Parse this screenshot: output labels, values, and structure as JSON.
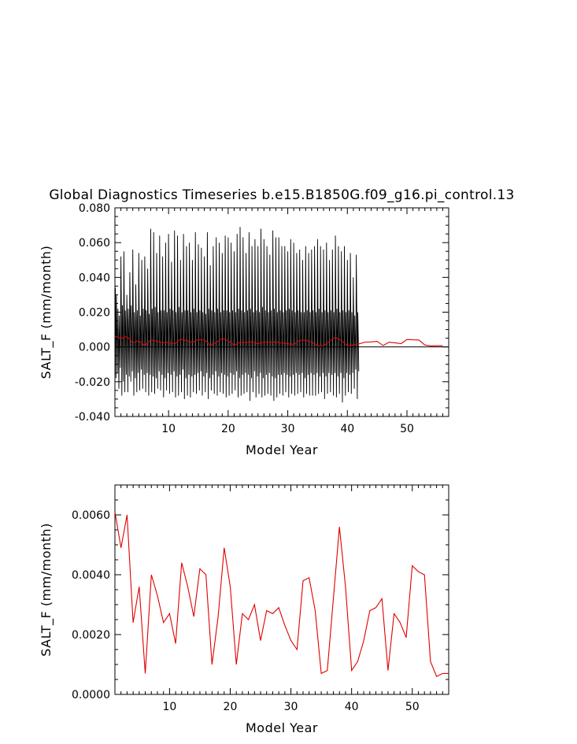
{
  "title": "Global Diagnostics Timeseries b.e15.B1850G.f09_g16.pi_control.13",
  "chart_data": [
    {
      "type": "line",
      "xlabel": "Model Year",
      "ylabel": "SALT_F (mm/month)",
      "xlim": [
        1,
        57
      ],
      "ylim": [
        -0.04,
        0.08
      ],
      "xticks": [
        10,
        20,
        30,
        40,
        50
      ],
      "yticks": [
        -0.04,
        -0.02,
        0.0,
        0.02,
        0.04,
        0.06,
        0.08
      ],
      "ytick_labels": [
        "-0.040",
        "-0.020",
        "0.000",
        "0.020",
        "0.040",
        "0.060",
        "0.080"
      ],
      "xtick_labels": [
        "10",
        "20",
        "30",
        "40",
        "50"
      ],
      "zero_line": true,
      "series": [
        {
          "kind": "monthly",
          "color": "#000000",
          "description_of_shape": "monthly values oscillating with a strong seasonal cycle",
          "x_start": 1.0,
          "x_step": 0.08333,
          "values": [
            0.012,
            0.034,
            -0.018,
            0.03,
            0.009,
            -0.015,
            0.022,
            0.005,
            -0.024,
            0.018,
            0.004,
            -0.012,
            0.052,
            0.021,
            -0.028,
            0.024,
            0.008,
            -0.02,
            0.055,
            0.02,
            -0.026,
            0.021,
            0.006,
            -0.016,
            0.03,
            0.014,
            -0.026,
            0.022,
            0.003,
            -0.017,
            0.043,
            0.017,
            -0.02,
            0.024,
            0.003,
            -0.014,
            0.056,
            0.019,
            -0.028,
            0.02,
            0.007,
            -0.018,
            0.036,
            0.016,
            -0.026,
            0.021,
            0.003,
            -0.015,
            0.054,
            0.02,
            -0.025,
            0.018,
            0.006,
            -0.013,
            0.05,
            0.016,
            -0.024,
            0.022,
            0.004,
            -0.016,
            0.052,
            0.02,
            -0.026,
            0.021,
            0.006,
            -0.015,
            0.045,
            0.017,
            -0.028,
            0.019,
            0.004,
            -0.016,
            0.068,
            0.022,
            -0.026,
            0.022,
            0.007,
            -0.017,
            0.066,
            0.021,
            -0.027,
            0.023,
            0.005,
            -0.018,
            0.054,
            0.019,
            -0.024,
            0.02,
            0.003,
            -0.014,
            0.064,
            0.018,
            -0.025,
            0.021,
            0.006,
            -0.016,
            0.052,
            0.015,
            -0.029,
            0.021,
            0.005,
            -0.018,
            0.06,
            0.018,
            -0.025,
            0.02,
            0.004,
            -0.015,
            0.065,
            0.021,
            -0.027,
            0.022,
            0.007,
            -0.016,
            0.049,
            0.017,
            -0.026,
            0.021,
            0.003,
            -0.014,
            0.067,
            0.02,
            -0.029,
            0.02,
            0.006,
            -0.017,
            0.064,
            0.019,
            -0.028,
            0.023,
            0.005,
            -0.016,
            0.05,
            0.016,
            -0.026,
            0.02,
            0.004,
            -0.013,
            0.065,
            0.022,
            -0.03,
            0.021,
            0.006,
            -0.018,
            0.058,
            0.019,
            -0.028,
            0.021,
            0.004,
            -0.016,
            0.06,
            0.016,
            -0.029,
            0.02,
            0.005,
            -0.017,
            0.05,
            0.018,
            -0.026,
            0.022,
            0.006,
            -0.016,
            0.066,
            0.021,
            -0.027,
            0.02,
            0.004,
            -0.015,
            0.059,
            0.018,
            -0.025,
            0.021,
            0.005,
            -0.014,
            0.057,
            0.017,
            -0.028,
            0.02,
            0.007,
            -0.017,
            0.052,
            0.016,
            -0.026,
            0.019,
            0.003,
            -0.015,
            0.066,
            0.022,
            -0.03,
            0.022,
            0.006,
            -0.018,
            0.047,
            0.016,
            -0.025,
            0.021,
            0.004,
            -0.016,
            0.058,
            0.019,
            -0.027,
            0.02,
            0.005,
            -0.014,
            0.063,
            0.018,
            -0.028,
            0.022,
            0.006,
            -0.017,
            0.06,
            0.017,
            -0.026,
            0.02,
            0.004,
            -0.015,
            0.054,
            0.02,
            -0.027,
            0.021,
            0.005,
            -0.016,
            0.064,
            0.021,
            -0.029,
            0.021,
            0.006,
            -0.017,
            0.063,
            0.019,
            -0.028,
            0.02,
            0.004,
            -0.015,
            0.06,
            0.018,
            -0.027,
            0.021,
            0.005,
            -0.016,
            0.055,
            0.016,
            -0.025,
            0.02,
            0.003,
            -0.014,
            0.065,
            0.02,
            -0.029,
            0.022,
            0.006,
            -0.018,
            0.069,
            0.022,
            -0.028,
            0.021,
            0.005,
            -0.016,
            0.063,
            0.019,
            -0.027,
            0.02,
            0.004,
            -0.015,
            0.054,
            0.017,
            -0.026,
            0.021,
            0.005,
            -0.016,
            0.066,
            0.02,
            -0.031,
            0.022,
            0.006,
            -0.018,
            0.058,
            0.018,
            -0.026,
            0.02,
            0.003,
            -0.014,
            0.062,
            0.02,
            -0.029,
            0.021,
            0.005,
            -0.017,
            0.058,
            0.019,
            -0.027,
            0.02,
            0.004,
            -0.015,
            0.068,
            0.022,
            -0.029,
            0.023,
            0.007,
            -0.018,
            0.062,
            0.019,
            -0.028,
            0.021,
            0.005,
            -0.016,
            0.058,
            0.018,
            -0.027,
            0.02,
            0.004,
            -0.015,
            0.053,
            0.016,
            -0.028,
            0.021,
            0.005,
            -0.017,
            0.067,
            0.021,
            -0.031,
            0.022,
            0.006,
            -0.018,
            0.063,
            0.019,
            -0.029,
            0.02,
            0.004,
            -0.016,
            0.063,
            0.02,
            -0.027,
            0.021,
            0.005,
            -0.016,
            0.058,
            0.018,
            -0.028,
            0.02,
            0.004,
            -0.015,
            0.058,
            0.017,
            -0.026,
            0.021,
            0.005,
            -0.016,
            0.055,
            0.018,
            -0.029,
            0.022,
            0.006,
            -0.017,
            0.062,
            0.02,
            -0.027,
            0.021,
            0.005,
            -0.016,
            0.06,
            0.019,
            -0.028,
            0.02,
            0.004,
            -0.015,
            0.054,
            0.017,
            -0.027,
            0.021,
            0.005,
            -0.016,
            0.056,
            0.018,
            -0.026,
            0.02,
            0.004,
            -0.015,
            0.05,
            0.016,
            -0.029,
            0.02,
            0.006,
            -0.018,
            0.058,
            0.02,
            -0.027,
            0.021,
            0.005,
            -0.016,
            0.054,
            0.018,
            -0.028,
            0.02,
            0.004,
            -0.015,
            0.056,
            0.018,
            -0.028,
            0.021,
            0.005,
            -0.016,
            0.058,
            0.019,
            -0.028,
            0.02,
            0.004,
            -0.015,
            0.062,
            0.02,
            -0.027,
            0.022,
            0.006,
            -0.017,
            0.058,
            0.018,
            -0.026,
            0.02,
            0.004,
            -0.015,
            0.056,
            0.019,
            -0.03,
            0.021,
            0.005,
            -0.017,
            0.06,
            0.017,
            -0.027,
            0.02,
            0.004,
            -0.015,
            0.05,
            0.016,
            -0.026,
            0.021,
            0.005,
            -0.016,
            0.056,
            0.018,
            -0.028,
            0.02,
            0.004,
            -0.015,
            0.064,
            0.02,
            -0.029,
            0.022,
            0.006,
            -0.017,
            0.058,
            0.018,
            -0.027,
            0.02,
            0.004,
            -0.015,
            0.055,
            0.017,
            -0.032,
            0.021,
            0.005,
            -0.018,
            0.058,
            0.018,
            -0.028,
            0.02,
            0.004,
            -0.015,
            0.05,
            0.016,
            -0.026,
            0.021,
            0.005,
            -0.016,
            0.054,
            0.018,
            -0.027,
            0.02,
            0.004,
            -0.015,
            0.04,
            0.012,
            -0.024,
            0.018,
            0.003,
            -0.013,
            0.053,
            0.018,
            -0.03,
            0.02,
            0.005,
            -0.014
          ]
        },
        {
          "kind": "annual_mean",
          "color": "#e00000",
          "x": [
            1,
            2,
            3,
            4,
            5,
            6,
            7,
            8,
            9,
            10,
            11,
            12,
            13,
            14,
            15,
            16,
            17,
            18,
            19,
            20,
            21,
            22,
            23,
            24,
            25,
            26,
            27,
            28,
            29,
            30,
            31,
            32,
            33,
            34,
            35,
            36,
            37,
            38,
            39,
            40,
            41,
            42,
            43,
            44,
            45,
            46,
            47,
            48,
            49,
            50,
            51,
            52,
            53,
            54,
            55,
            56
          ],
          "values": [
            0.0061,
            0.0049,
            0.006,
            0.0024,
            0.0036,
            0.0007,
            0.004,
            0.0033,
            0.0024,
            0.0027,
            0.0017,
            0.0044,
            0.0036,
            0.0026,
            0.0042,
            0.004,
            0.001,
            0.0026,
            0.0049,
            0.0036,
            0.001,
            0.0027,
            0.0025,
            0.003,
            0.0018,
            0.0028,
            0.0027,
            0.0029,
            0.0023,
            0.0018,
            0.0015,
            0.0038,
            0.0039,
            0.0028,
            0.0007,
            0.0008,
            0.0032,
            0.0056,
            0.0036,
            0.0008,
            0.0011,
            0.0018,
            0.0028,
            0.0029,
            0.0032,
            0.0008,
            0.0027,
            0.0024,
            0.0019,
            0.0043,
            0.0041,
            0.004,
            0.0011,
            0.0006,
            0.0007,
            0.0007
          ]
        }
      ]
    },
    {
      "type": "line",
      "xlabel": "Model Year",
      "ylabel": "SALT_F (mm/month)",
      "xlim": [
        1,
        56
      ],
      "ylim": [
        0.0,
        0.007
      ],
      "xticks": [
        10,
        20,
        30,
        40,
        50
      ],
      "yticks": [
        0.0,
        0.002,
        0.004,
        0.006
      ],
      "ytick_labels": [
        "0.0000",
        "0.0020",
        "0.0040",
        "0.0060"
      ],
      "xtick_labels": [
        "10",
        "20",
        "30",
        "40",
        "50"
      ],
      "zero_line": false,
      "series": [
        {
          "kind": "annual_mean",
          "color": "#e00000",
          "x": [
            1,
            2,
            3,
            4,
            5,
            6,
            7,
            8,
            9,
            10,
            11,
            12,
            13,
            14,
            15,
            16,
            17,
            18,
            19,
            20,
            21,
            22,
            23,
            24,
            25,
            26,
            27,
            28,
            29,
            30,
            31,
            32,
            33,
            34,
            35,
            36,
            37,
            38,
            39,
            40,
            41,
            42,
            43,
            44,
            45,
            46,
            47,
            48,
            49,
            50,
            51,
            52,
            53,
            54,
            55,
            56
          ],
          "values": [
            0.0061,
            0.0049,
            0.006,
            0.0024,
            0.0036,
            0.0007,
            0.004,
            0.0033,
            0.0024,
            0.0027,
            0.0017,
            0.0044,
            0.0036,
            0.0026,
            0.0042,
            0.004,
            0.001,
            0.0026,
            0.0049,
            0.0036,
            0.001,
            0.0027,
            0.0025,
            0.003,
            0.0018,
            0.0028,
            0.0027,
            0.0029,
            0.0023,
            0.0018,
            0.0015,
            0.0038,
            0.0039,
            0.0028,
            0.0007,
            0.0008,
            0.0032,
            0.0056,
            0.0036,
            0.0008,
            0.0011,
            0.0018,
            0.0028,
            0.0029,
            0.0032,
            0.0008,
            0.0027,
            0.0024,
            0.0019,
            0.0043,
            0.0041,
            0.004,
            0.0011,
            0.0006,
            0.0007,
            0.0007
          ]
        }
      ]
    }
  ]
}
